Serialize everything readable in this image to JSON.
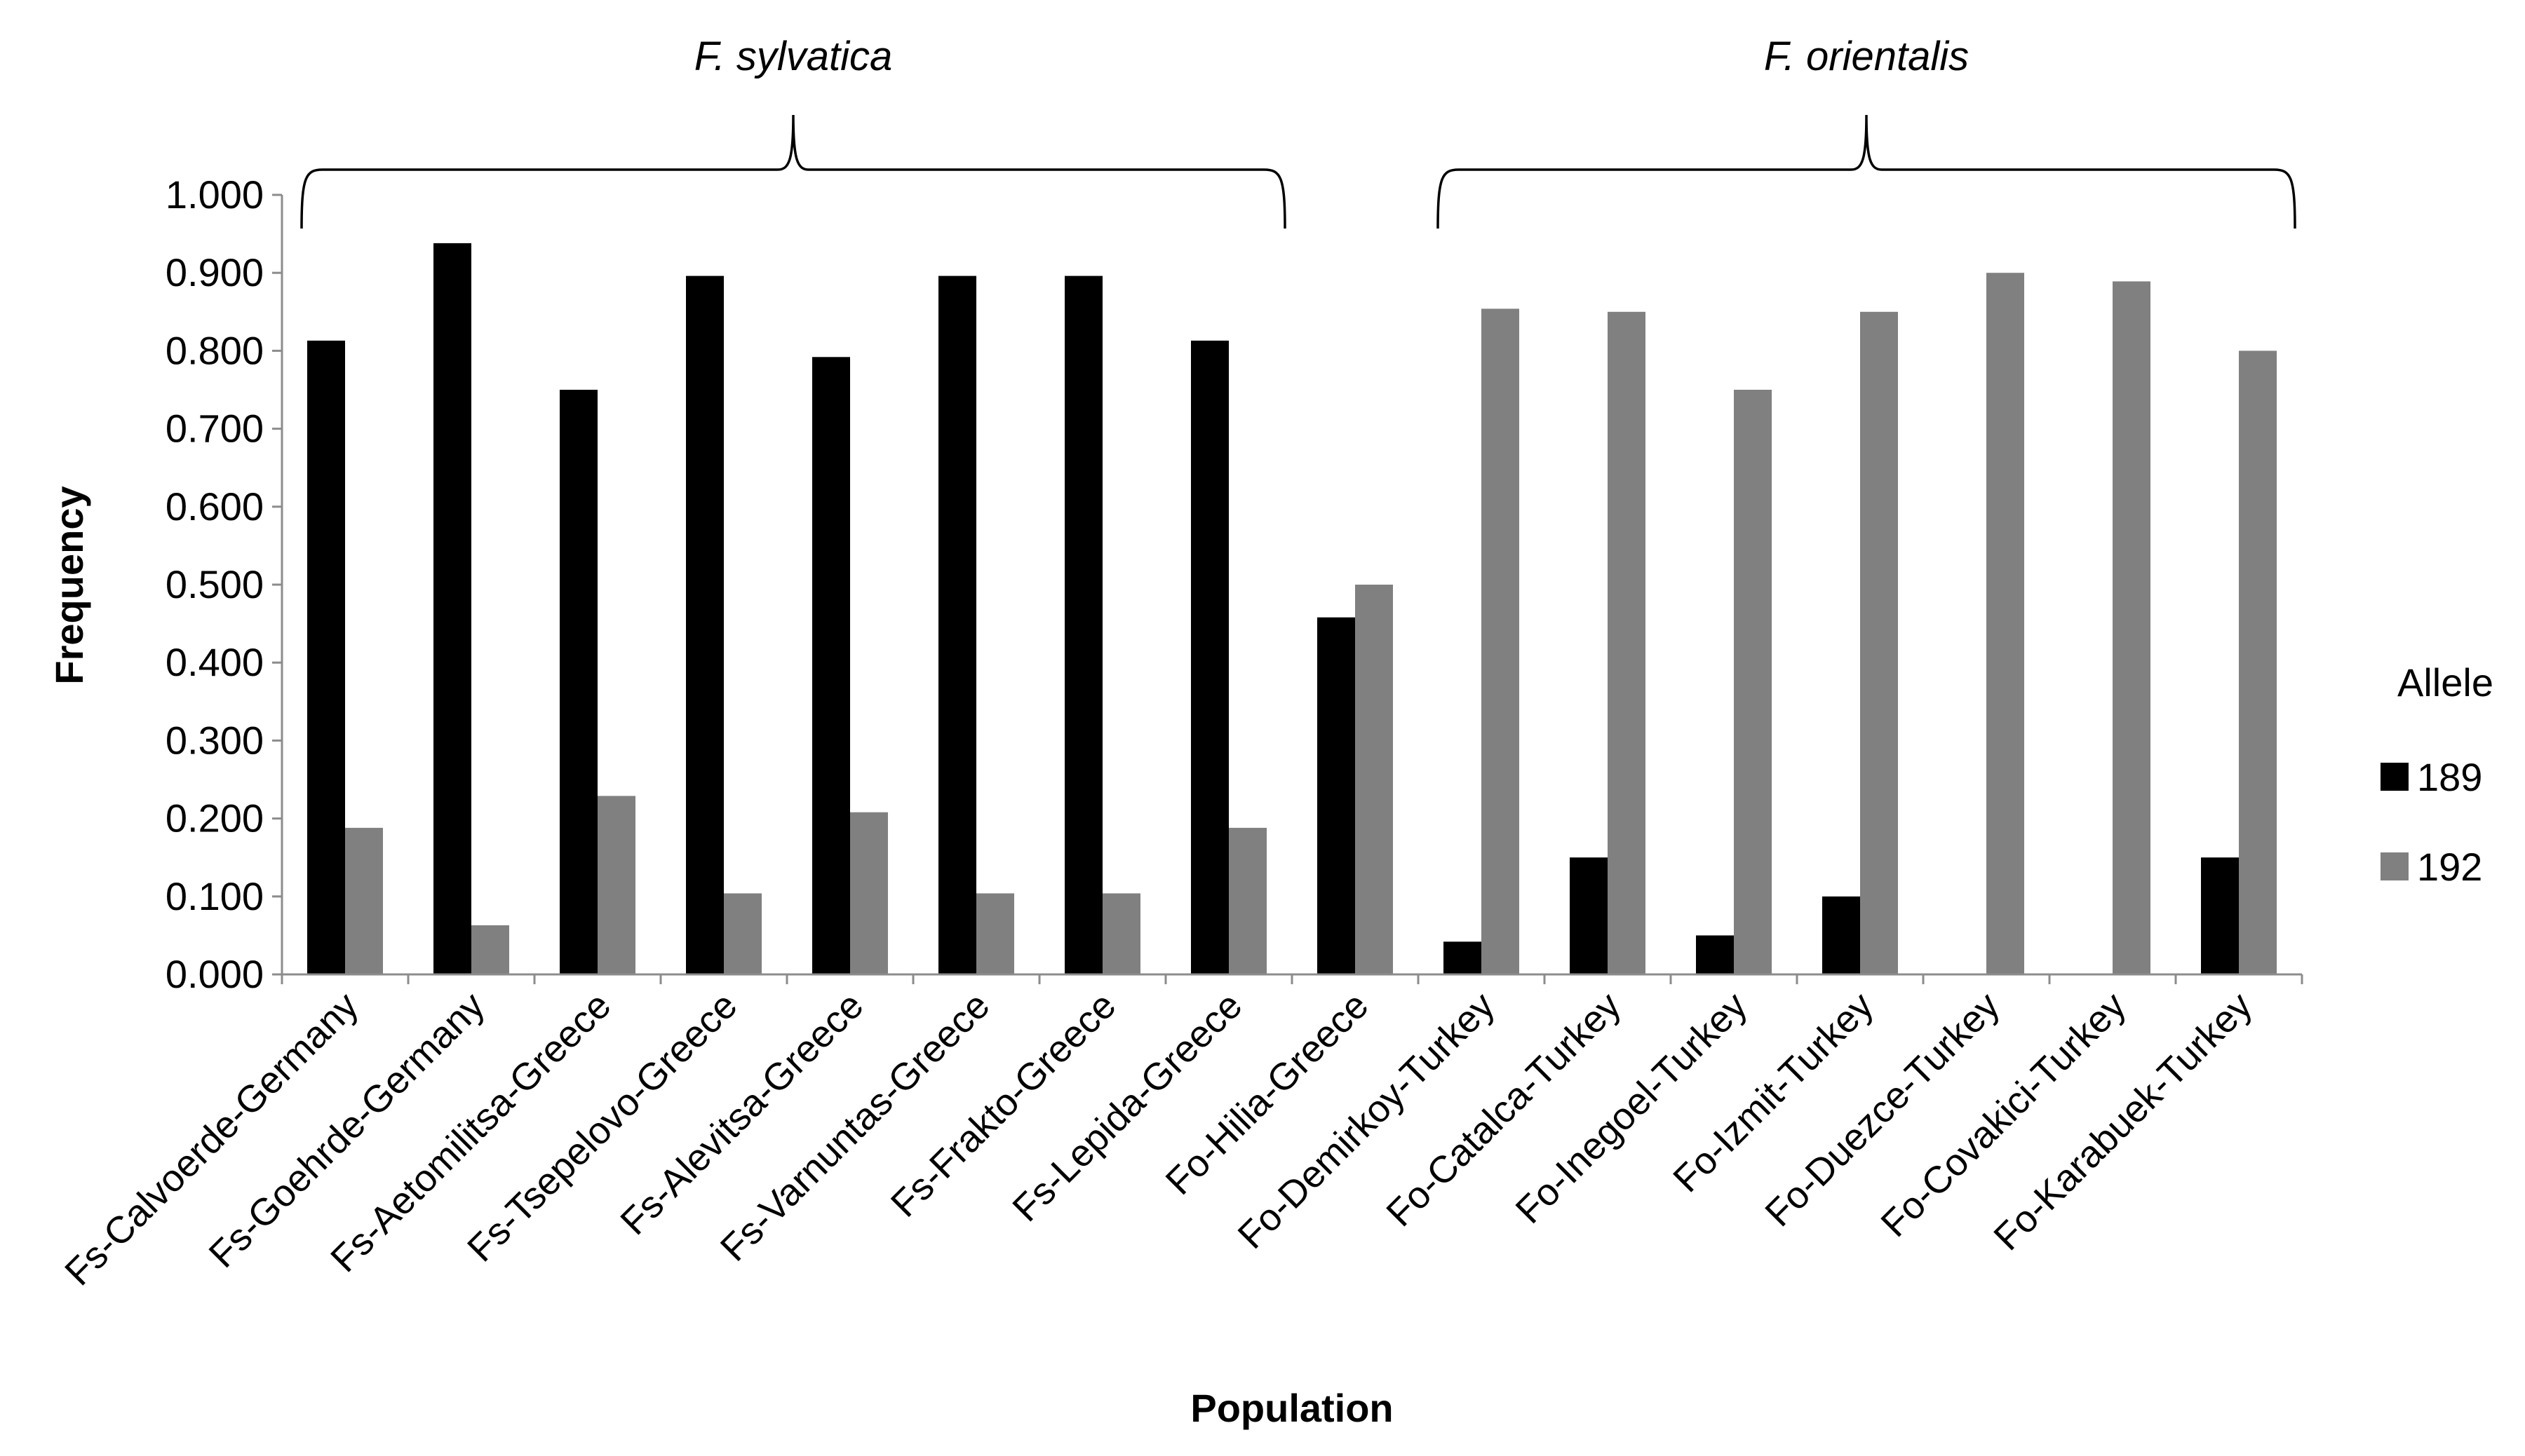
{
  "chart_data": {
    "type": "bar",
    "title": "",
    "xlabel": "Population",
    "ylabel": "Frequency",
    "ylim": [
      0,
      1.0
    ],
    "ytick_step": 0.1,
    "ytick_labels": [
      "0.000",
      "0.100",
      "0.200",
      "0.300",
      "0.400",
      "0.500",
      "0.600",
      "0.700",
      "0.800",
      "0.900",
      "1.000"
    ],
    "grid": false,
    "legend_position": "right",
    "legend_title": "Allele",
    "categories": [
      "Fs-Calvoerde-Germany",
      "Fs-Goehrde-Germany",
      "Fs-Aetomilitsa-Greece",
      "Fs-Tsepelovo-Greece",
      "Fs-Alevitsa-Greece",
      "Fs-Varnuntas-Greece",
      "Fs-Frakto-Greece",
      "Fs-Lepida-Greece",
      "Fo-Hilia-Greece",
      "Fo-Demirkoy-Turkey",
      "Fo-Catalca-Turkey",
      "Fo-Inegoel-Turkey",
      "Fo-Izmit-Turkey",
      "Fo-Duezce-Turkey",
      "Fo-Covakici-Turkey",
      "Fo-Karabuek-Turkey"
    ],
    "series": [
      {
        "name": "189",
        "color": "#000000",
        "values": [
          0.813,
          0.938,
          0.75,
          0.896,
          0.792,
          0.896,
          0.896,
          0.813,
          0.458,
          0.042,
          0.15,
          0.05,
          0.1,
          0.0,
          0.0,
          0.15
        ]
      },
      {
        "name": "192",
        "color": "#808080",
        "values": [
          0.188,
          0.063,
          0.229,
          0.104,
          0.208,
          0.104,
          0.104,
          0.188,
          0.5,
          0.854,
          0.85,
          0.75,
          0.85,
          0.9,
          0.889,
          0.8
        ]
      }
    ],
    "groups": [
      {
        "label": "F. sylvatica",
        "first_category": 0,
        "last_category": 7
      },
      {
        "label": "F. orientalis",
        "first_category": 9,
        "last_category": 15
      }
    ]
  }
}
